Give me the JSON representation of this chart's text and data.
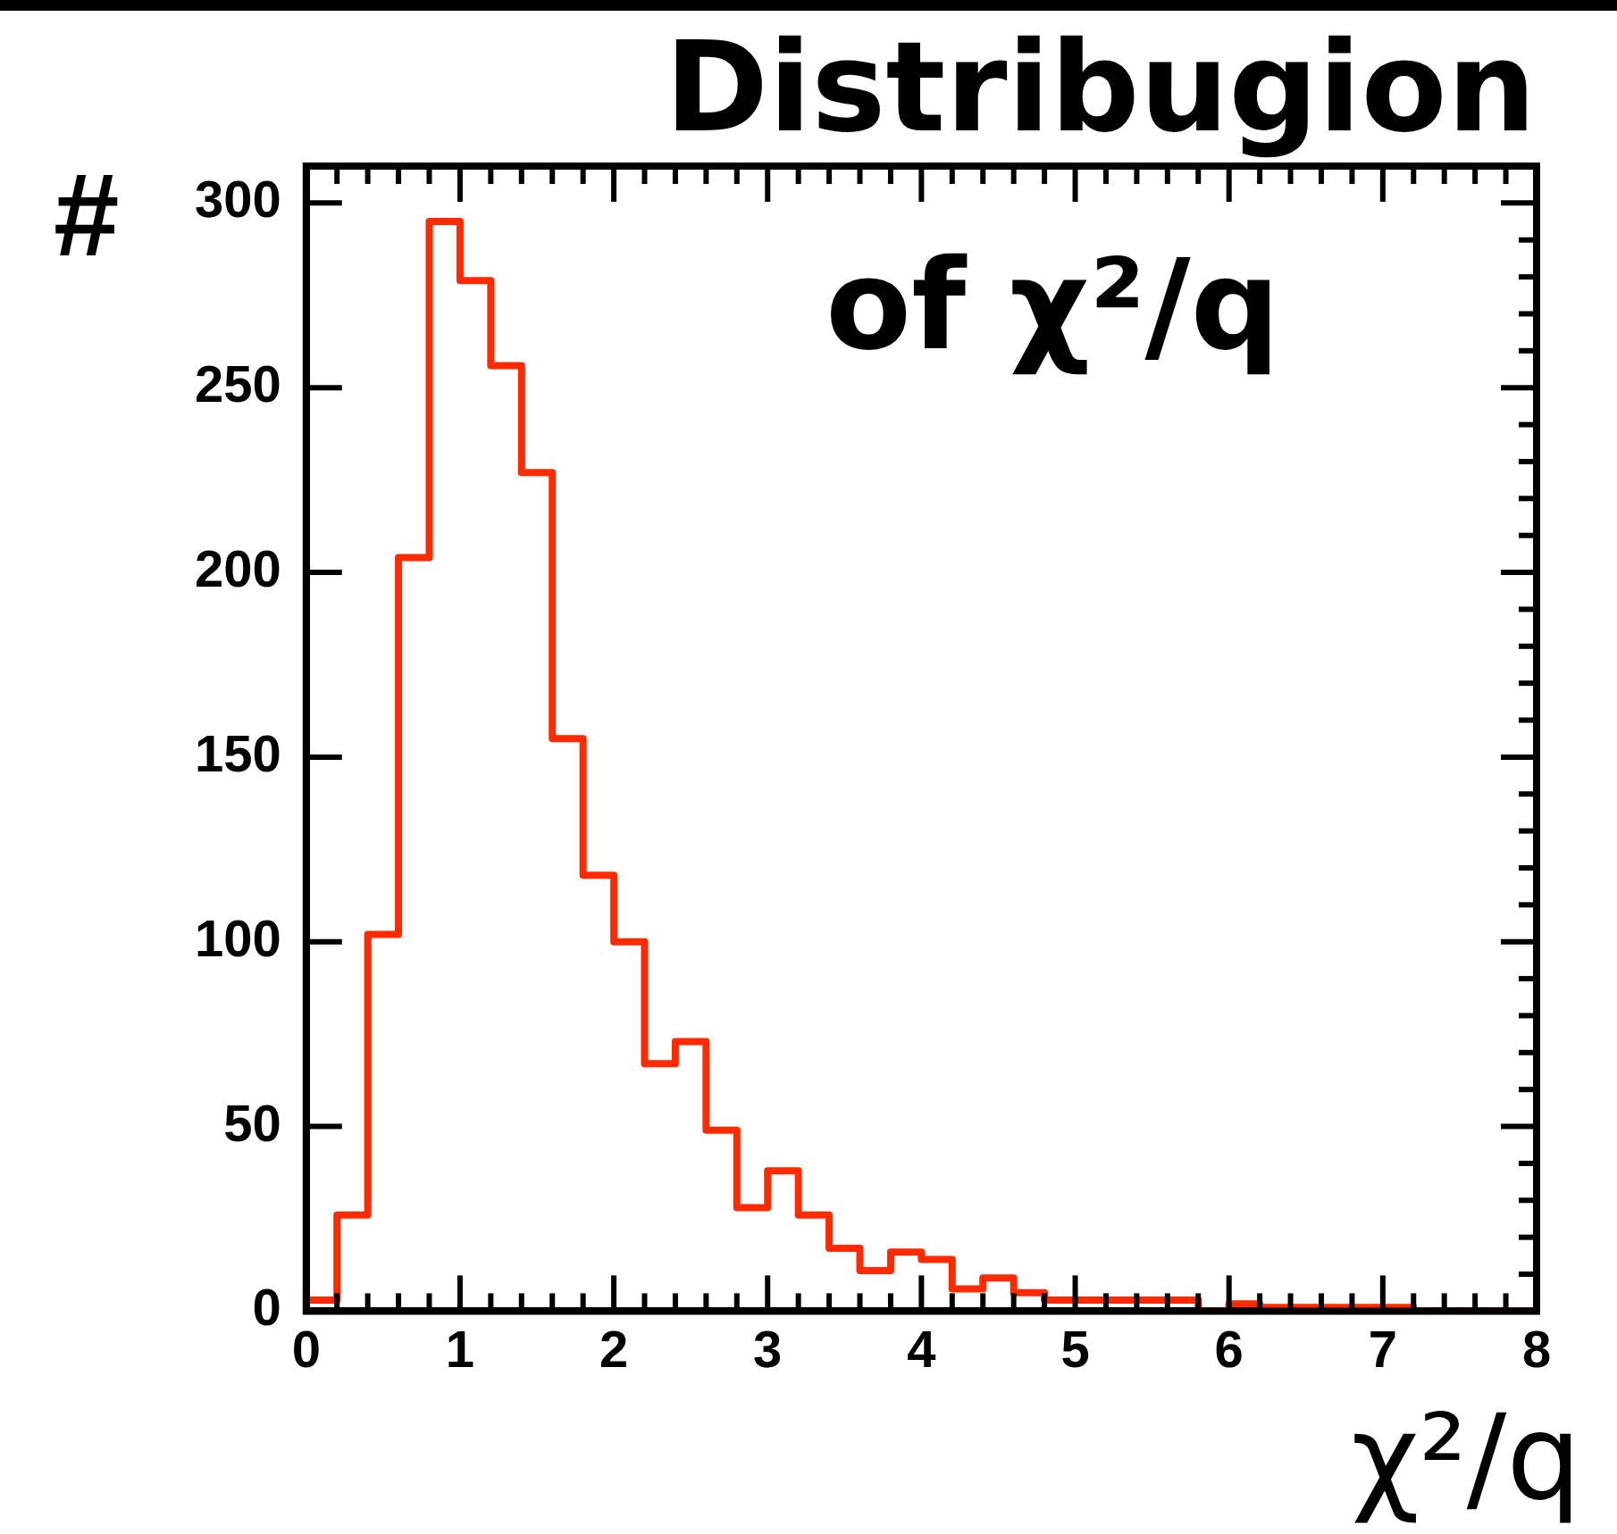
{
  "chart_data": {
    "type": "histogram",
    "title": "Distribugion of χ²/q",
    "xlabel": "χ²/q",
    "ylabel": "#",
    "bins": [
      0,
      0.2,
      0.4,
      0.6,
      0.8,
      1.0,
      1.2,
      1.4,
      1.6,
      1.8,
      2.0,
      2.2,
      2.4,
      2.6,
      2.8,
      3.0,
      3.2,
      3.4,
      3.6,
      3.8,
      4.0,
      4.2,
      4.4,
      4.6,
      4.8,
      5.0,
      5.2,
      5.4,
      5.6,
      5.8,
      6.0,
      6.2,
      6.4,
      6.6,
      6.8,
      7.0,
      7.2,
      7.4,
      7.6,
      7.8,
      8.0
    ],
    "values": [
      3,
      26,
      102,
      204,
      295,
      279,
      256,
      227,
      155,
      118,
      100,
      67,
      73,
      49,
      28,
      38,
      26,
      17,
      11,
      16,
      14,
      6,
      9,
      5,
      3,
      3,
      3,
      3,
      3,
      0,
      2,
      1,
      1,
      1,
      1,
      1,
      0,
      0,
      0,
      0
    ],
    "color": "#ff2a00",
    "xlim": [
      0,
      8
    ],
    "xticks": [
      0,
      1,
      2,
      3,
      4,
      5,
      6,
      7,
      8
    ],
    "ylim": [
      0,
      310
    ],
    "yticks": [
      0,
      50,
      100,
      150,
      200,
      250,
      300
    ],
    "grid": false,
    "legend": false
  }
}
